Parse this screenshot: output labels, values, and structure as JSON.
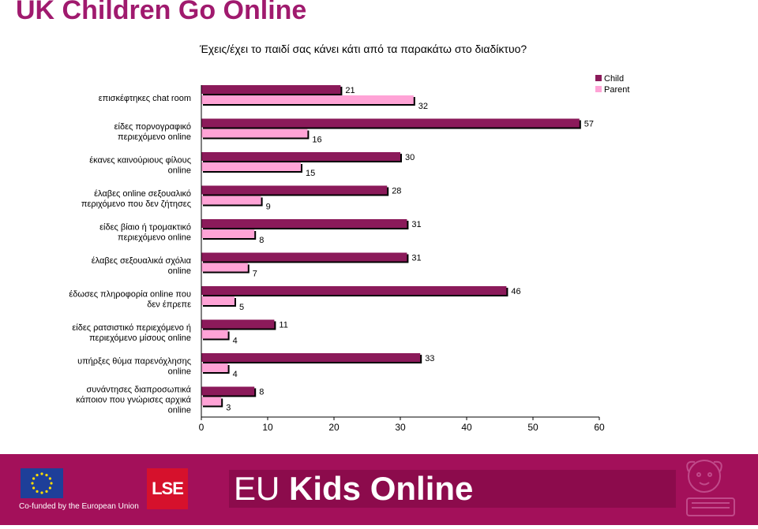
{
  "header": {
    "title": "UK Children Go Online",
    "subtitle": "Έχεις/έχει το παιδί σας κάνει κάτι από τα παρακάτω στο διαδίκτυο?"
  },
  "chart_data": {
    "type": "bar",
    "orientation": "horizontal",
    "categories": [
      [
        "επισκέφτηκες chat room"
      ],
      [
        "είδες πορνογραφικό",
        "περιεχόμενο online"
      ],
      [
        "έκανες καινούριους φίλους",
        "online"
      ],
      [
        "έλαβες online σεξουαλικό",
        "περιχόμενο που δεν ζήτησες"
      ],
      [
        "είδες βίαιο ή τρομακτικό",
        "περιεχόμενο online"
      ],
      [
        "έλαβες σεξουαλικά σχόλια",
        "online"
      ],
      [
        "έδωσες πληροφορία online που",
        "δεν έπρεπε"
      ],
      [
        "είδες ρατσιστικό περιεχόμενο ή",
        "περιεχόμενο μίσους online"
      ],
      [
        "υπήρξες θύμα παρενόχλησης",
        "online"
      ],
      [
        "συνάντησες διαπροσωπικά",
        "κάποιον που γνώρισες αρχικά",
        "online"
      ]
    ],
    "series": [
      {
        "name": "Child",
        "color": "#8b1a5a",
        "values": [
          21,
          57,
          30,
          28,
          31,
          31,
          46,
          11,
          33,
          8
        ]
      },
      {
        "name": "Parent",
        "color": "#ffa3d6",
        "values": [
          32,
          16,
          15,
          9,
          8,
          7,
          5,
          4,
          4,
          3
        ]
      }
    ],
    "xlim": [
      0,
      60
    ],
    "xticks": [
      "0",
      "10",
      "20",
      "30",
      "40",
      "50",
      "60"
    ],
    "legend_position": "top-right",
    "grid": false
  },
  "footer": {
    "eu_caption": "Co-funded by the European Union",
    "lse_logo": "LSE",
    "brand_light": "EU ",
    "brand_bold": "Kids Online",
    "background_color": "#a3105a"
  }
}
